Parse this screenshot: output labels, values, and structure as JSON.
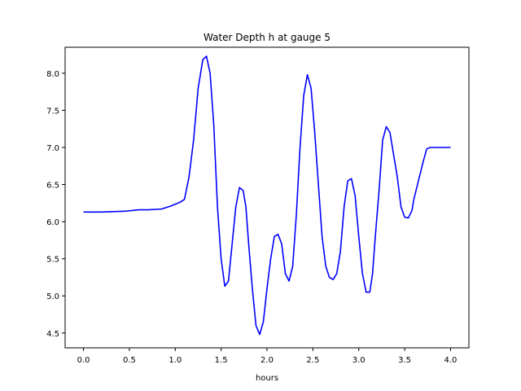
{
  "chart_data": {
    "type": "line",
    "title": "Water Depth h at gauge 5",
    "xlabel": "hours",
    "ylabel": "",
    "xlim": [
      -0.2,
      4.2
    ],
    "ylim": [
      4.3,
      8.35
    ],
    "xticks": [
      0.0,
      0.5,
      1.0,
      1.5,
      2.0,
      2.5,
      3.0,
      3.5,
      4.0
    ],
    "xtick_labels": [
      "0.0",
      "0.5",
      "1.0",
      "1.5",
      "2.0",
      "2.5",
      "3.0",
      "3.5",
      "4.0"
    ],
    "yticks": [
      4.5,
      5.0,
      5.5,
      6.0,
      6.5,
      7.0,
      7.5,
      8.0
    ],
    "ytick_labels": [
      "4.5",
      "5.0",
      "5.5",
      "6.0",
      "6.5",
      "7.0",
      "7.5",
      "8.0"
    ],
    "grid": false,
    "series_color": "#0000ff",
    "series": [
      {
        "x": [
          0.0,
          0.2,
          0.45,
          0.6,
          0.7,
          0.85,
          0.95,
          1.05,
          1.1,
          1.15,
          1.2,
          1.25,
          1.3,
          1.34,
          1.38,
          1.42,
          1.46,
          1.5,
          1.54,
          1.58,
          1.62,
          1.66,
          1.7,
          1.74,
          1.77,
          1.8,
          1.84,
          1.88,
          1.92,
          1.96,
          2.0,
          2.04,
          2.08,
          2.12,
          2.16,
          2.2,
          2.24,
          2.28,
          2.32,
          2.36,
          2.4,
          2.44,
          2.48,
          2.52,
          2.56,
          2.6,
          2.64,
          2.68,
          2.72,
          2.76,
          2.8,
          2.84,
          2.88,
          2.92,
          2.96,
          3.0,
          3.04,
          3.08,
          3.12,
          3.15,
          3.18,
          3.22,
          3.26,
          3.3,
          3.34,
          3.38,
          3.42,
          3.46,
          3.5,
          3.54,
          3.58,
          3.6,
          3.62,
          3.66,
          3.7,
          3.74,
          3.78,
          3.82,
          3.85,
          3.88,
          3.91,
          3.95,
          4.0
        ],
        "y": [
          6.13,
          6.13,
          6.14,
          6.16,
          6.16,
          6.17,
          6.21,
          6.26,
          6.3,
          6.6,
          7.1,
          7.8,
          8.18,
          8.23,
          8.0,
          7.3,
          6.2,
          5.5,
          5.13,
          5.2,
          5.7,
          6.2,
          6.46,
          6.42,
          6.2,
          5.7,
          5.1,
          4.6,
          4.48,
          4.65,
          5.1,
          5.5,
          5.8,
          5.83,
          5.7,
          5.3,
          5.2,
          5.4,
          6.1,
          7.0,
          7.7,
          7.98,
          7.8,
          7.2,
          6.5,
          5.8,
          5.4,
          5.25,
          5.22,
          5.3,
          5.6,
          6.2,
          6.55,
          6.58,
          6.35,
          5.8,
          5.3,
          5.05,
          5.05,
          5.3,
          5.8,
          6.4,
          7.1,
          7.28,
          7.2,
          6.9,
          6.6,
          6.2,
          6.06,
          6.05,
          6.15,
          6.3,
          6.4,
          6.6,
          6.8,
          6.98,
          7.0,
          7.0,
          7.0,
          7.0,
          7.0,
          7.0,
          7.0
        ]
      }
    ]
  }
}
